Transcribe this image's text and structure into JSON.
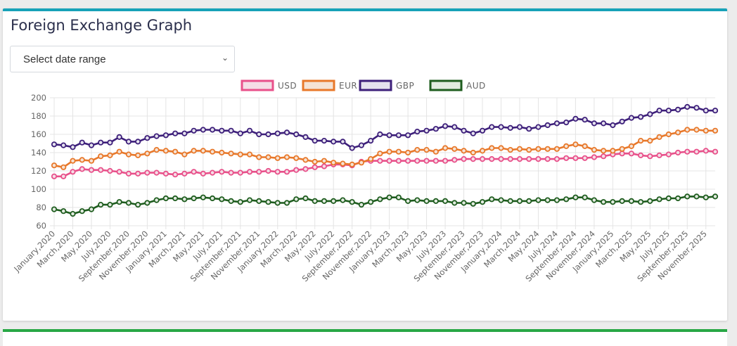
{
  "card": {
    "title": "Foreign Exchange Graph",
    "accent_color": "#17a2b8",
    "select_placeholder": "Select date range",
    "select_icon": "chevron-down-icon"
  },
  "bottom_card": {
    "accent_color": "#28a745"
  },
  "chart_data": {
    "type": "line",
    "title": "",
    "xlabel": "",
    "ylabel": "",
    "ylim": [
      60,
      200
    ],
    "yticks": [
      60,
      80,
      100,
      120,
      140,
      160,
      180,
      200
    ],
    "grid": true,
    "legend_position": "top-center",
    "x": [
      "January,2020",
      "February,2020",
      "March,2020",
      "April,2020",
      "May,2020",
      "June,2020",
      "July,2020",
      "August,2020",
      "September,2020",
      "October,2020",
      "November,2020",
      "December,2020",
      "January,2021",
      "February,2021",
      "March,2021",
      "April,2021",
      "May,2021",
      "June,2021",
      "July,2021",
      "August,2021",
      "September,2021",
      "October,2021",
      "November,2021",
      "December,2021",
      "January,2022",
      "February,2022",
      "March,2022",
      "April,2022",
      "May,2022",
      "June,2022",
      "July,2022",
      "August,2022",
      "September,2022",
      "October,2022",
      "November,2022",
      "December,2022",
      "January,2023",
      "February,2023",
      "March,2023",
      "April,2023",
      "May,2023",
      "June,2023",
      "July,2023",
      "August,2023",
      "September,2023",
      "October,2023",
      "November,2023",
      "December,2023",
      "January,2024",
      "February,2024",
      "March,2024",
      "April,2024",
      "May,2024",
      "June,2024",
      "July,2024",
      "August,2024",
      "September,2024",
      "October,2024",
      "November,2024",
      "December,2024",
      "January,2025",
      "February,2025",
      "March,2025",
      "April,2025",
      "May,2025",
      "June,2025",
      "July,2025",
      "August,2025",
      "September,2025",
      "October,2025",
      "November,2025",
      "December,2025"
    ],
    "xtick_labels": [
      "January,2020",
      "March,2020",
      "May,2020",
      "July,2020",
      "September,2020",
      "November,2020",
      "January,2021",
      "March,2021",
      "May,2021",
      "July,2021",
      "September,2021",
      "November,2021",
      "January,2022",
      "March,2022",
      "May,2022",
      "July,2022",
      "September,2022",
      "November,2022",
      "January,2023",
      "March,2023",
      "May,2023",
      "July,2023",
      "September,2023",
      "November,2023",
      "January,2024",
      "March,2024",
      "May,2024",
      "July,2024",
      "September,2024",
      "November,2024",
      "January,2025",
      "March,2025",
      "May,2025",
      "July,2025",
      "September,2025",
      "November,2025"
    ],
    "series": [
      {
        "name": "USD",
        "color": "#e8508a",
        "fill": "#f5dde6",
        "values": [
          114,
          114,
          119,
          122,
          121,
          121,
          120,
          119,
          117,
          117,
          118,
          118,
          117,
          116,
          117,
          119,
          117,
          118,
          119,
          118,
          118,
          119,
          119,
          120,
          119,
          119,
          121,
          122,
          124,
          125,
          127,
          127,
          126,
          130,
          131,
          131,
          131,
          131,
          131,
          131,
          131,
          131,
          131,
          132,
          133,
          133,
          133,
          133,
          133,
          133,
          133,
          133,
          133,
          133,
          133,
          134,
          134,
          134,
          135,
          136,
          138,
          139,
          139,
          137,
          136,
          137,
          138,
          140,
          141,
          141,
          142,
          141
        ]
      },
      {
        "name": "EUR",
        "color": "#e8782a",
        "fill": "#f5e3d5",
        "values": [
          126,
          124,
          131,
          132,
          131,
          136,
          137,
          141,
          138,
          137,
          139,
          143,
          142,
          141,
          138,
          142,
          142,
          141,
          140,
          139,
          138,
          138,
          135,
          135,
          134,
          135,
          134,
          132,
          130,
          131,
          129,
          128,
          127,
          129,
          133,
          139,
          141,
          141,
          140,
          143,
          143,
          141,
          145,
          144,
          142,
          140,
          142,
          145,
          145,
          143,
          144,
          143,
          144,
          144,
          144,
          147,
          149,
          147,
          143,
          142,
          142,
          144,
          147,
          153,
          153,
          157,
          160,
          162,
          165,
          165,
          164,
          164
        ]
      },
      {
        "name": "GBP",
        "color": "#3d1f7a",
        "fill": "#e5e2ee",
        "values": [
          149,
          148,
          146,
          151,
          148,
          151,
          151,
          157,
          152,
          152,
          156,
          158,
          159,
          161,
          161,
          164,
          165,
          165,
          164,
          164,
          161,
          164,
          160,
          160,
          161,
          162,
          160,
          157,
          153,
          153,
          152,
          152,
          145,
          148,
          153,
          160,
          159,
          159,
          159,
          163,
          164,
          166,
          169,
          168,
          164,
          161,
          164,
          168,
          168,
          167,
          168,
          166,
          168,
          170,
          172,
          173,
          177,
          176,
          172,
          172,
          170,
          174,
          178,
          179,
          182,
          186,
          186,
          187,
          190,
          189,
          186,
          186
        ]
      },
      {
        "name": "AUD",
        "color": "#1e5c1e",
        "fill": "#e2ebe0",
        "values": [
          78,
          76,
          73,
          76,
          78,
          83,
          83,
          86,
          85,
          83,
          85,
          88,
          90,
          90,
          89,
          90,
          91,
          90,
          89,
          87,
          86,
          88,
          87,
          86,
          85,
          85,
          89,
          90,
          87,
          87,
          87,
          88,
          86,
          83,
          86,
          89,
          91,
          91,
          87,
          88,
          87,
          87,
          87,
          85,
          85,
          84,
          86,
          89,
          88,
          87,
          87,
          87,
          88,
          88,
          88,
          89,
          91,
          91,
          88,
          86,
          86,
          87,
          87,
          86,
          87,
          89,
          90,
          90,
          92,
          92,
          91,
          92
        ]
      }
    ]
  }
}
